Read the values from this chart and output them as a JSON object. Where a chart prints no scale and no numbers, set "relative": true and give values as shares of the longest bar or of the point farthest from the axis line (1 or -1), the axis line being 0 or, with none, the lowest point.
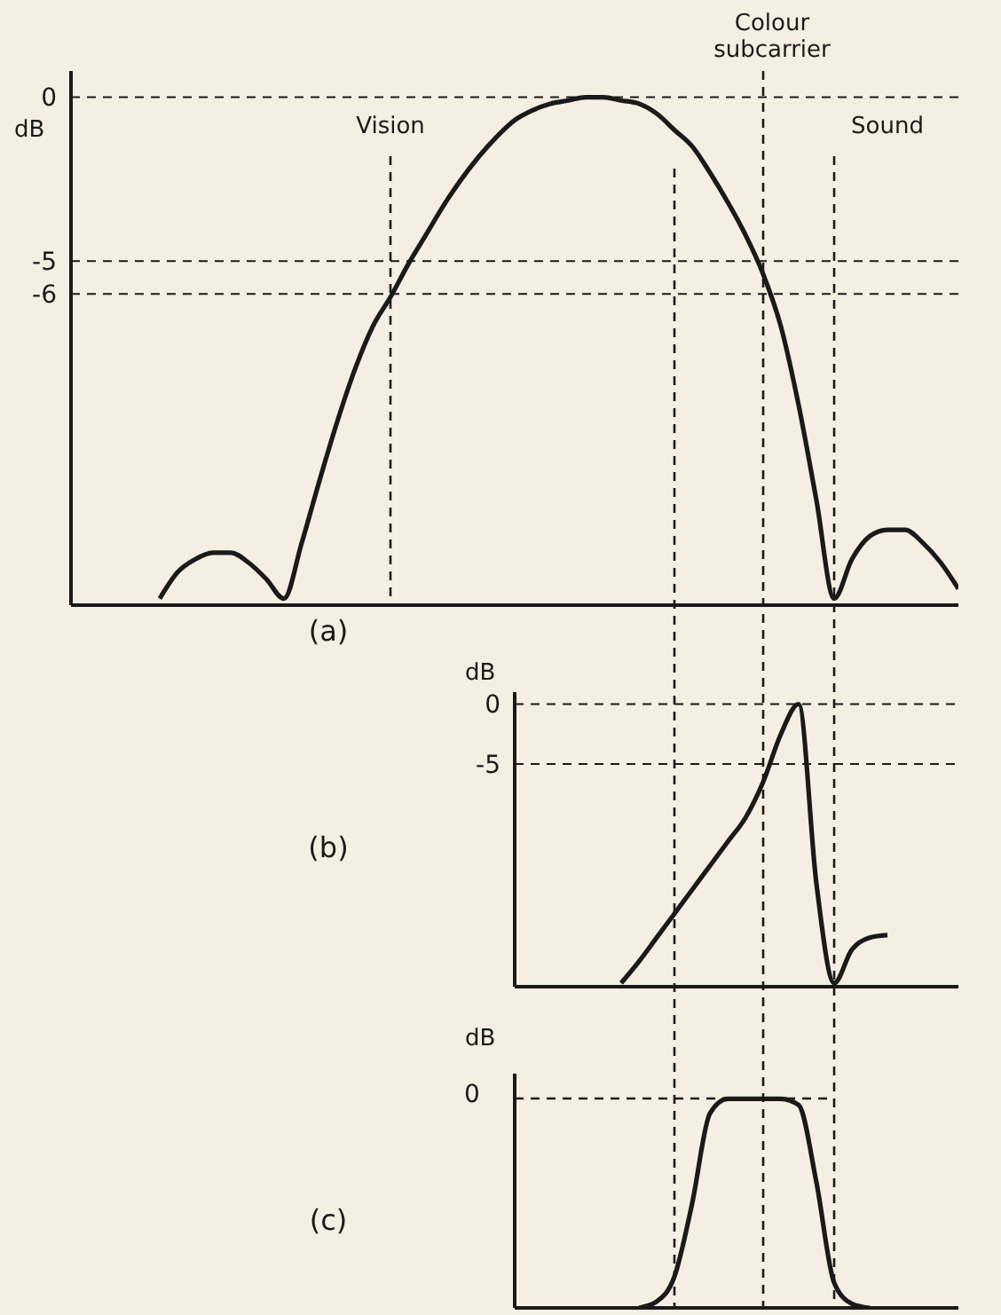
{
  "chart_data": [
    {
      "type": "line",
      "ylabel": "dB",
      "annotations": [
        "(a)",
        "Vision",
        "Colour subcarrier",
        "Sound"
      ],
      "tick_labels": "y",
      "grid": true,
      "marker": "none",
      "line_style": "solid",
      "ylim": [
        -15.5,
        0.8
      ],
      "yticks": [
        0,
        -5,
        -6
      ],
      "categories": [
        null,
        null,
        null,
        null,
        null,
        null,
        null,
        null,
        null,
        null,
        null,
        null,
        null,
        null,
        null,
        null,
        null,
        null,
        null,
        null,
        null,
        null,
        null,
        null,
        null,
        null,
        null,
        null,
        null,
        null,
        null,
        null,
        null,
        null,
        null,
        null,
        null,
        null,
        null,
        null,
        null,
        null,
        null,
        null,
        null,
        null,
        null,
        null,
        null,
        null,
        null
      ],
      "series": [
        {
          "color": "#1a1a1a",
          "values": [
            null,
            null,
            null,
            null,
            null,
            -15.3,
            -14.5,
            -14.1,
            -13.9,
            -13.9,
            -14.2,
            -14.7,
            -15.3,
            -13.6,
            -11.7,
            -9.9,
            -8.3,
            -7.0,
            -6.1,
            -5.1,
            -4.2,
            -3.3,
            -2.5,
            -1.8,
            -1.2,
            -0.7,
            -0.4,
            -0.2,
            -0.1,
            0,
            0,
            -0.1,
            -0.2,
            -0.5,
            -1.0,
            -1.5,
            -2.3,
            -3.2,
            -4.2,
            -5.4,
            -7.0,
            -9.4,
            -12.3,
            -15.3,
            -14.1,
            -13.4,
            -13.2,
            -13.2,
            -13.6,
            -14.2,
            -15.0
          ]
        }
      ]
    },
    {
      "type": "line",
      "ylabel": "dB",
      "annotations": [
        "(b)"
      ],
      "tick_labels": "y",
      "grid": "y",
      "marker": "none",
      "line_style": "solid",
      "ylim": [
        -23.6,
        1
      ],
      "yticks": [
        0,
        -5
      ],
      "categories": [
        null,
        null,
        null,
        null,
        null,
        null,
        null,
        null,
        null,
        null,
        null,
        null,
        null,
        null,
        null,
        null,
        null,
        null,
        null,
        null,
        null,
        null,
        null,
        null,
        null,
        null
      ],
      "series": [
        {
          "color": "#1a1a1a",
          "values": [
            null,
            null,
            null,
            null,
            null,
            null,
            -23.3,
            -21.5,
            -19.5,
            -17.5,
            -15.5,
            -13.5,
            -11.5,
            -9.5,
            -6.5,
            -2.5,
            0,
            -15,
            -23.3,
            -20.5,
            -19.5,
            -19.3,
            null,
            null,
            null,
            null
          ]
        }
      ]
    },
    {
      "type": "line",
      "ylabel": "dB",
      "annotations": [
        "(c)",
        "0"
      ],
      "relative": true,
      "marker": "none",
      "line_style": "solid",
      "categories": [
        null,
        null,
        null,
        null,
        null,
        null,
        null,
        null,
        null,
        null,
        null,
        null,
        null,
        null,
        null,
        null,
        null,
        null,
        null,
        null,
        null,
        null,
        null,
        null,
        null,
        null
      ],
      "series": [
        {
          "color": "#1a1a1a",
          "values": [
            null,
            null,
            null,
            null,
            null,
            null,
            null,
            0,
            0.03,
            0.15,
            0.5,
            0.93,
            1,
            1,
            1,
            1,
            0.97,
            0.6,
            0.12,
            0.02,
            0,
            null,
            null,
            null,
            null,
            null
          ]
        }
      ]
    }
  ]
}
